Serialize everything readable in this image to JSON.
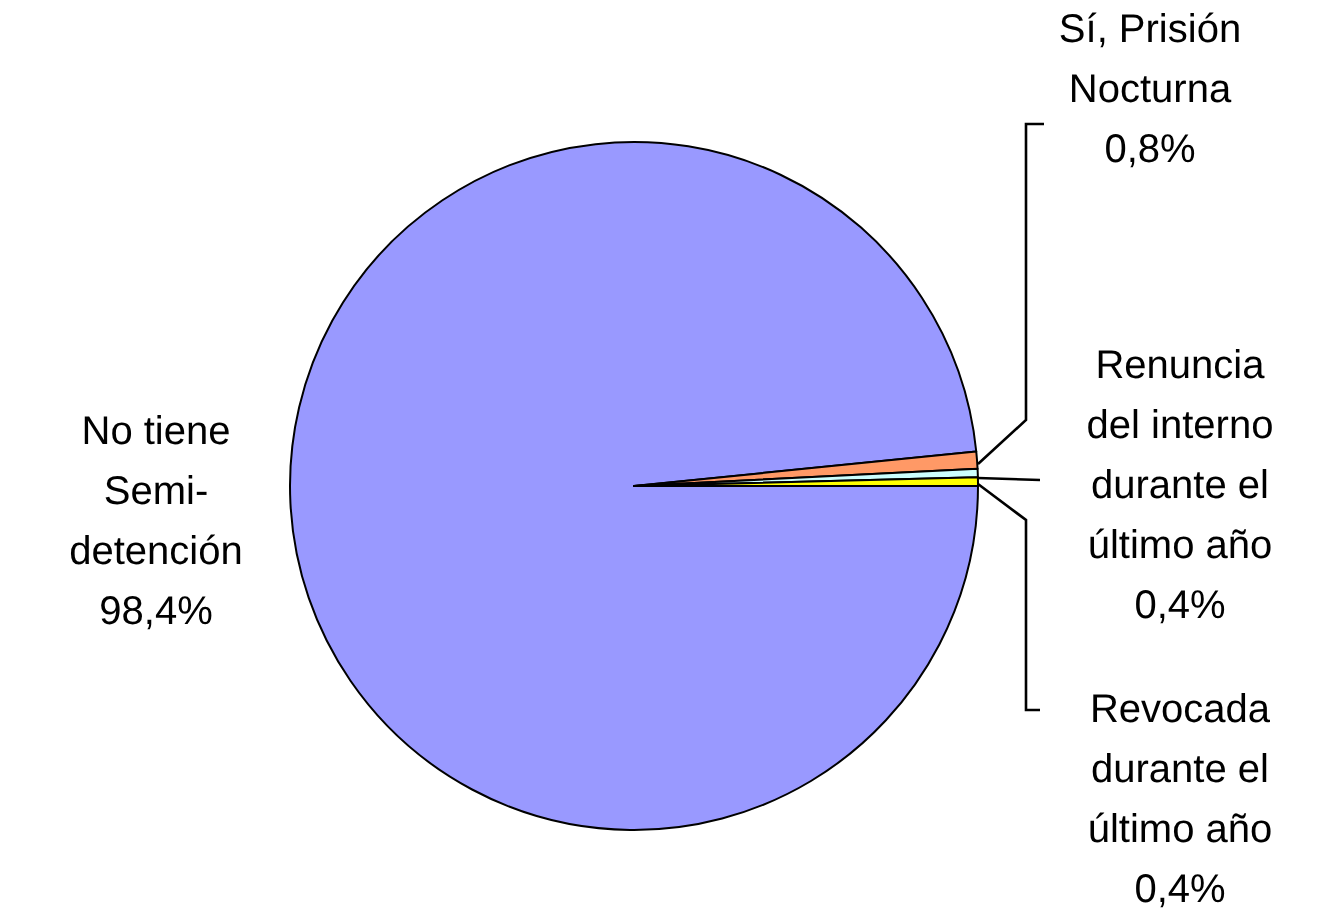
{
  "chart_data": {
    "type": "pie",
    "categories": [
      "No tiene\nSemi-\ndetención",
      "Sí, Prisión\nNocturna",
      "Renuncia\ndel interno\ndurante el\núltimo año",
      "Revocada\ndurante el\núltimo año"
    ],
    "values": [
      98.4,
      0.8,
      0.4,
      0.4
    ],
    "value_labels": [
      "98,4%",
      "0,8%",
      "0,4%",
      "0,4%"
    ],
    "colors": [
      "#9999ff",
      "#ff9966",
      "#ccffff",
      "#ffff00"
    ]
  }
}
